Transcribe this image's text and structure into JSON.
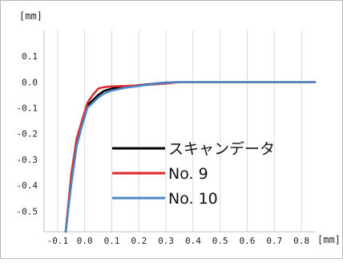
{
  "chart_data": {
    "type": "line",
    "y_unit": "[mm]",
    "x_unit": "[mm]",
    "xlim": [
      -0.15,
      0.85
    ],
    "ylim": [
      -0.58,
      0.2
    ],
    "x_ticks": [
      -0.1,
      0.0,
      0.1,
      0.2,
      0.3,
      0.4,
      0.5,
      0.6,
      0.7,
      0.8
    ],
    "x_tick_labels": [
      "-0.1",
      "0.0",
      "0.1",
      "0.2",
      "0.3",
      "0.4",
      "0.5",
      "0.6",
      "0.7",
      "0.8"
    ],
    "y_ticks": [
      0.1,
      0.0,
      -0.1,
      -0.2,
      -0.3,
      -0.4,
      -0.5
    ],
    "y_tick_labels": [
      "0.1",
      "0.0",
      "-0.1",
      "-0.2",
      "-0.3",
      "-0.4",
      "-0.5"
    ],
    "grid": "vertical",
    "legend_position": "inside-bottom-right",
    "series": [
      {
        "name": "スキャンデータ",
        "color": "#000000",
        "x": [
          -0.07,
          -0.05,
          -0.03,
          -0.01,
          0.0,
          0.01,
          0.03,
          0.05,
          0.07,
          0.1,
          0.15,
          0.2,
          0.25,
          0.3,
          0.35,
          0.4,
          0.5,
          0.6,
          0.7,
          0.85
        ],
        "y": [
          -0.58,
          -0.38,
          -0.24,
          -0.16,
          -0.12,
          -0.09,
          -0.07,
          -0.05,
          -0.035,
          -0.025,
          -0.018,
          -0.012,
          -0.007,
          -0.002,
          0.0,
          0.0,
          0.0,
          0.0,
          0.0,
          0.0
        ]
      },
      {
        "name": "No. 9",
        "color": "#e3262b",
        "x": [
          -0.07,
          -0.05,
          -0.03,
          -0.01,
          0.01,
          0.03,
          0.05,
          0.07,
          0.1,
          0.15,
          0.2,
          0.3,
          0.35,
          0.4,
          0.5,
          0.6,
          0.7,
          0.85
        ],
        "y": [
          -0.58,
          -0.36,
          -0.22,
          -0.15,
          -0.08,
          -0.05,
          -0.025,
          -0.02,
          -0.017,
          -0.015,
          -0.013,
          -0.006,
          0.0,
          0.0,
          0.0,
          0.0,
          0.0,
          0.0
        ]
      },
      {
        "name": "No. 10",
        "color": "#4a87c9",
        "x": [
          -0.07,
          -0.05,
          -0.03,
          -0.01,
          0.01,
          0.03,
          0.05,
          0.07,
          0.1,
          0.15,
          0.2,
          0.25,
          0.3,
          0.35,
          0.4,
          0.5,
          0.6,
          0.7,
          0.85
        ],
        "y": [
          -0.58,
          -0.4,
          -0.25,
          -0.17,
          -0.1,
          -0.08,
          -0.06,
          -0.045,
          -0.033,
          -0.022,
          -0.015,
          -0.008,
          -0.003,
          0.0,
          0.0,
          0.0,
          0.0,
          0.0,
          0.0
        ]
      }
    ]
  }
}
